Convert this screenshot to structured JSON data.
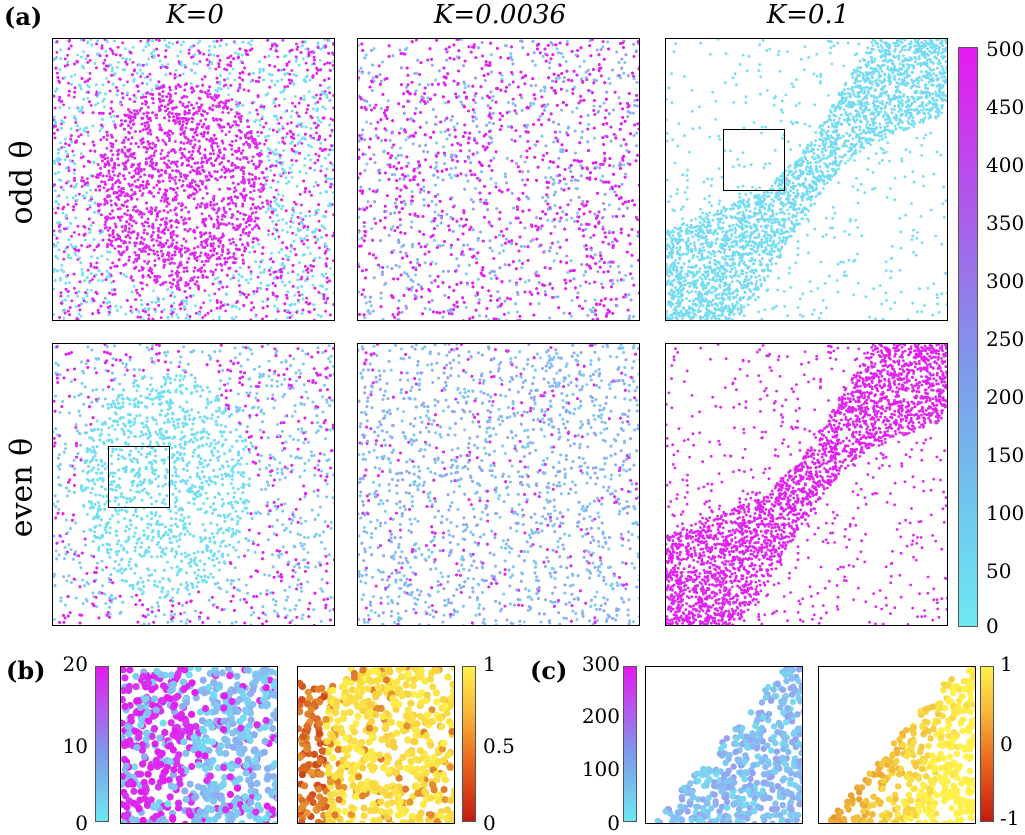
{
  "figure": {
    "panel_labels": {
      "a": "(a)",
      "b": "(b)",
      "c": "(c)"
    },
    "column_titles": [
      "K=0",
      "K=0.0036",
      "K=0.1"
    ],
    "row_titles": [
      "odd θ",
      "even θ"
    ]
  },
  "colors": {
    "cool_low": "#6ee8f2",
    "cool_high": "#e619f0",
    "hot_low": "#c41a10",
    "hot_high": "#fff04a"
  },
  "colorbars": {
    "a": {
      "ticks": [
        "500",
        "450",
        "400",
        "350",
        "300",
        "250",
        "200",
        "150",
        "100",
        "50",
        "0"
      ],
      "range": [
        0,
        500
      ],
      "map": "cyan-magenta"
    },
    "b_left": {
      "ticks": [
        "20",
        "10",
        "0"
      ],
      "range": [
        0,
        20
      ],
      "map": "cyan-magenta"
    },
    "b_right": {
      "ticks": [
        "1",
        "0.5",
        "0"
      ],
      "range": [
        0,
        1
      ],
      "map": "red-yellow"
    },
    "c_left": {
      "ticks": [
        "300",
        "200",
        "100",
        "0"
      ],
      "range": [
        0,
        300
      ],
      "map": "cyan-magenta"
    },
    "c_right": {
      "ticks": [
        "1",
        "0",
        "-1"
      ],
      "range": [
        -1,
        1
      ],
      "map": "red-yellow"
    }
  }
}
